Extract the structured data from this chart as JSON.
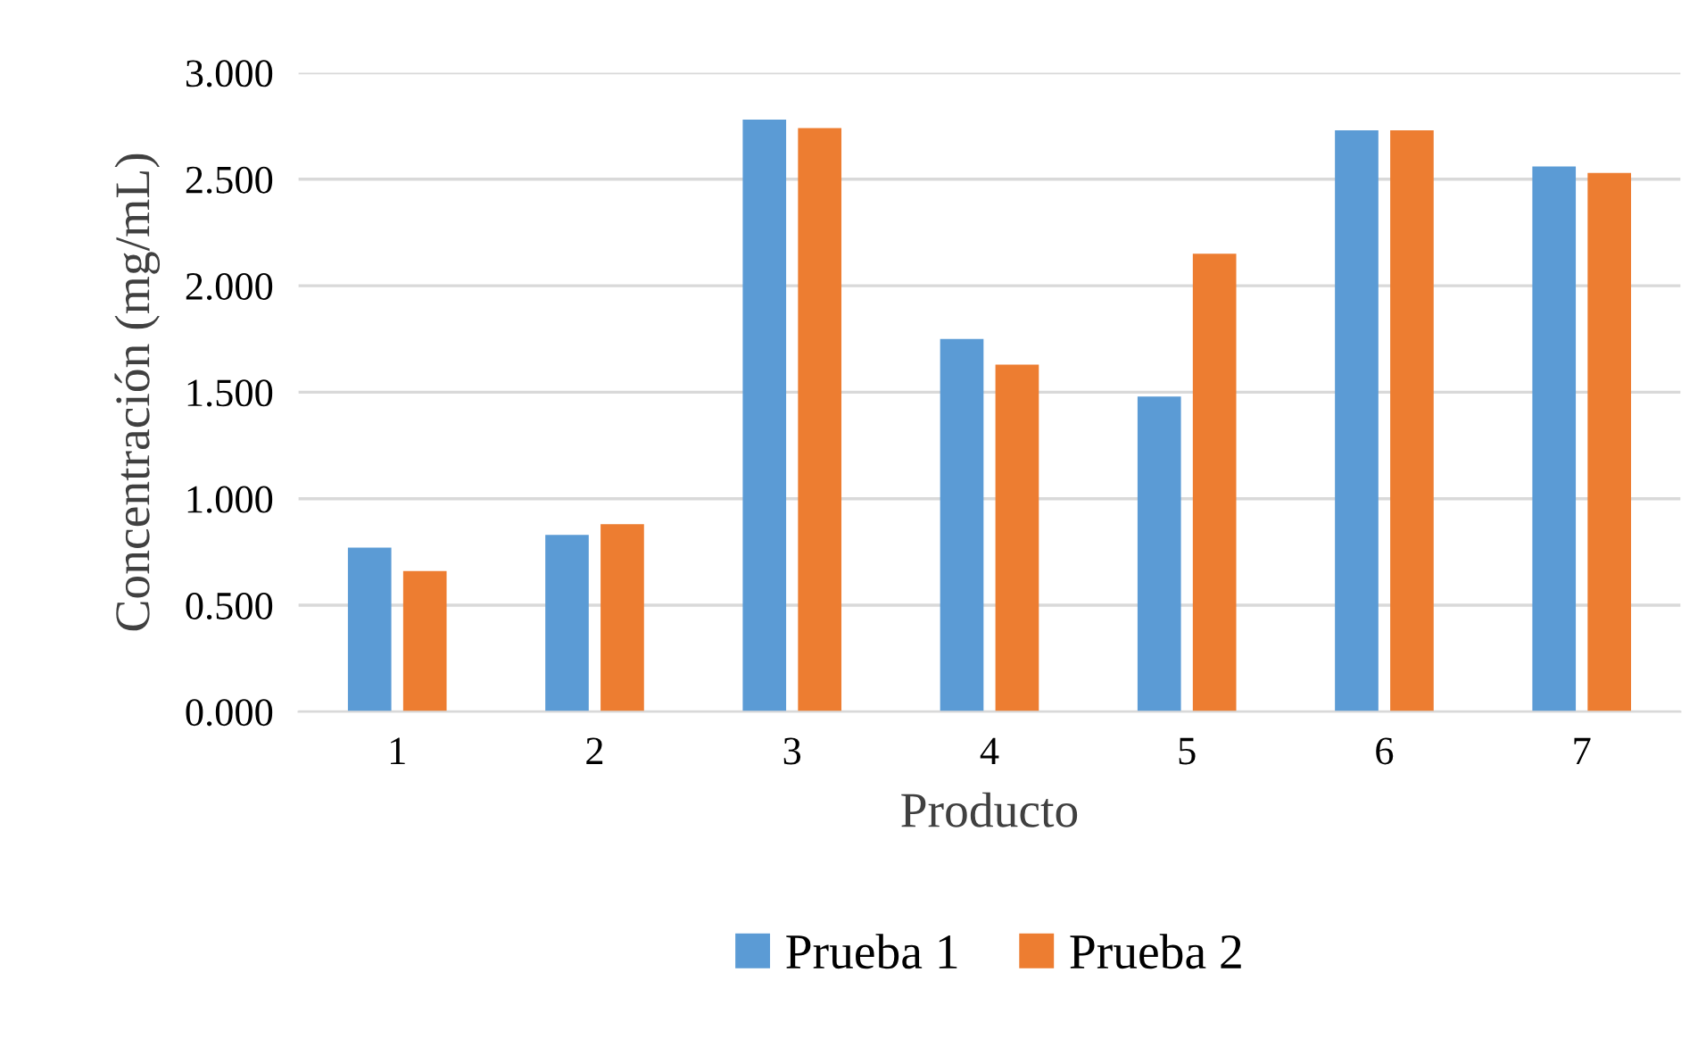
{
  "chart_data": {
    "type": "bar",
    "xlabel": "Producto",
    "ylabel": "Concentración (mg/mL)",
    "categories": [
      "1",
      "2",
      "3",
      "4",
      "5",
      "6",
      "7"
    ],
    "series": [
      {
        "name": "Prueba 1",
        "color": "#5b9bd5",
        "values": [
          0.77,
          0.83,
          2.78,
          1.75,
          1.48,
          2.73,
          2.56
        ]
      },
      {
        "name": "Prueba 2",
        "color": "#ed7d31",
        "values": [
          0.66,
          0.88,
          2.74,
          1.63,
          2.15,
          2.73,
          2.53
        ]
      }
    ],
    "ylim": [
      0,
      3
    ],
    "yticks": [
      {
        "value": 0,
        "label": "0.000"
      },
      {
        "value": 0.5,
        "label": "0.500"
      },
      {
        "value": 1,
        "label": "1.000"
      },
      {
        "value": 1.5,
        "label": "1.500"
      },
      {
        "value": 2,
        "label": "2.000"
      },
      {
        "value": 2.5,
        "label": "2.500"
      },
      {
        "value": 3,
        "label": "3.000"
      }
    ],
    "grid": "y",
    "legend": "bottom"
  }
}
